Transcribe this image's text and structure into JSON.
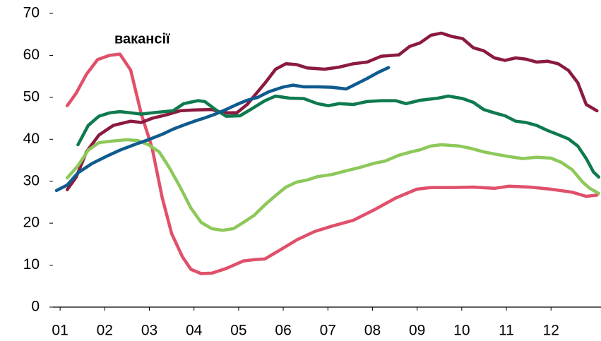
{
  "chart_data": {
    "type": "line",
    "annotation": "вакансії",
    "xlim": [
      0.84,
      13.12
    ],
    "xticks": [
      {
        "value": 1,
        "label": "01"
      },
      {
        "value": 2,
        "label": "02"
      },
      {
        "value": 3,
        "label": "03"
      },
      {
        "value": 4,
        "label": "04"
      },
      {
        "value": 5,
        "label": "05"
      },
      {
        "value": 6,
        "label": "06"
      },
      {
        "value": 7,
        "label": "07"
      },
      {
        "value": 8,
        "label": "08"
      },
      {
        "value": 9,
        "label": "09"
      },
      {
        "value": 10,
        "label": "10"
      },
      {
        "value": 11,
        "label": "11"
      },
      {
        "value": 12,
        "label": "12"
      }
    ],
    "ylim": [
      0,
      70
    ],
    "yticks": [
      0,
      10,
      20,
      30,
      40,
      50,
      60,
      70
    ],
    "series": [
      {
        "color": "#e0506a",
        "x": [
          1.16,
          1.36,
          1.59,
          1.84,
          2.11,
          2.34,
          2.58,
          2.82,
          3.06,
          3.29,
          3.5,
          3.74,
          3.93,
          4.16,
          4.4,
          4.72,
          5.11,
          5.35,
          5.59,
          5.91,
          6.3,
          6.7,
          7.09,
          7.57,
          8.04,
          8.52,
          8.99,
          9.31,
          9.78,
          10.26,
          10.73,
          11.05,
          11.52,
          12.0,
          12.47,
          12.79,
          13.03
        ],
        "values": [
          48,
          51,
          55.5,
          59,
          60,
          60.3,
          56.5,
          46,
          38,
          26,
          17.5,
          12,
          9,
          8,
          8.1,
          9.2,
          11,
          11.3,
          11.5,
          13.5,
          16,
          18,
          19.3,
          20.7,
          23.2,
          26,
          28.1,
          28.5,
          28.5,
          28.6,
          28.3,
          28.8,
          28.6,
          28.1,
          27.4,
          26.4,
          26.7
        ]
      },
      {
        "color": "#8b1a3f",
        "x": [
          1.16,
          1.36,
          1.59,
          1.87,
          2.19,
          2.58,
          2.82,
          3.06,
          3.37,
          3.69,
          4.01,
          4.4,
          4.64,
          4.96,
          5.19,
          5.59,
          5.83,
          6.06,
          6.3,
          6.54,
          6.93,
          7.25,
          7.57,
          7.88,
          8.2,
          8.59,
          8.83,
          9.07,
          9.31,
          9.54,
          9.78,
          10.02,
          10.26,
          10.49,
          10.73,
          10.97,
          11.21,
          11.44,
          11.68,
          11.92,
          12.16,
          12.39,
          12.6,
          12.79,
          13.03
        ],
        "values": [
          28,
          31,
          37,
          41,
          43.3,
          44.3,
          44,
          45,
          45.8,
          46.8,
          47,
          47.1,
          46.3,
          46.3,
          48.3,
          53.4,
          56.7,
          58,
          57.8,
          57,
          56.7,
          57.2,
          58,
          58.4,
          59.8,
          60.1,
          62.1,
          63,
          64.8,
          65.3,
          64.5,
          64,
          61.8,
          61.1,
          59.4,
          58.8,
          59.4,
          59.1,
          58.4,
          58.6,
          58,
          56.4,
          53.5,
          48.3,
          46.8
        ]
      },
      {
        "color": "#0e7a4e",
        "x": [
          1.4,
          1.63,
          1.87,
          2.11,
          2.34,
          2.58,
          2.82,
          3.06,
          3.53,
          3.77,
          4.09,
          4.24,
          4.48,
          4.72,
          5.03,
          5.27,
          5.59,
          5.83,
          6.14,
          6.46,
          6.77,
          7.01,
          7.25,
          7.57,
          7.88,
          8.2,
          8.52,
          8.75,
          9.07,
          9.47,
          9.7,
          10.02,
          10.26,
          10.49,
          10.73,
          10.97,
          11.21,
          11.44,
          11.68,
          11.92,
          12.16,
          12.39,
          12.6,
          12.79,
          12.95,
          13.07
        ],
        "values": [
          38.7,
          43.3,
          45.5,
          46.3,
          46.6,
          46.3,
          46,
          46.3,
          46.8,
          48.5,
          49.2,
          49,
          47.1,
          45.5,
          45.6,
          47.1,
          49.2,
          50.3,
          49.8,
          49.7,
          48.5,
          48,
          48.5,
          48.3,
          49,
          49.2,
          49.2,
          48.5,
          49.3,
          49.8,
          50.3,
          49.7,
          48.8,
          47.1,
          46.3,
          45.6,
          44.3,
          44,
          43.3,
          42.1,
          41.1,
          40.1,
          38.4,
          35.4,
          32.2,
          31
        ]
      },
      {
        "color": "#8dc85a",
        "x": [
          1.16,
          1.4,
          1.63,
          1.87,
          2.19,
          2.5,
          2.74,
          2.98,
          3.22,
          3.45,
          3.69,
          3.93,
          4.16,
          4.4,
          4.64,
          4.88,
          5.11,
          5.35,
          5.59,
          5.83,
          6.06,
          6.3,
          6.54,
          6.77,
          7.09,
          7.41,
          7.72,
          8.04,
          8.28,
          8.59,
          8.83,
          9.07,
          9.31,
          9.54,
          9.94,
          10.18,
          10.49,
          10.73,
          11.05,
          11.36,
          11.68,
          12.0,
          12.23,
          12.47,
          12.71,
          12.87,
          13.07
        ],
        "values": [
          30.8,
          33.7,
          37.4,
          39.2,
          39.6,
          39.9,
          39.7,
          38.7,
          37,
          33.2,
          28.6,
          23.6,
          20.2,
          18.7,
          18.3,
          18.7,
          20.2,
          21.9,
          24.4,
          26.6,
          28.6,
          29.8,
          30.3,
          31.1,
          31.6,
          32.5,
          33.3,
          34.3,
          34.8,
          36.2,
          36.9,
          37.5,
          38.4,
          38.7,
          38.4,
          37.9,
          37,
          36.5,
          35.9,
          35.4,
          35.7,
          35.5,
          34.5,
          32.8,
          29.8,
          28.3,
          27.1
        ]
      },
      {
        "color": "#0f5b8f",
        "x": [
          0.92,
          1.16,
          1.4,
          1.71,
          2.03,
          2.34,
          2.66,
          2.98,
          3.29,
          3.53,
          3.77,
          4.01,
          4.24,
          4.48,
          4.72,
          4.96,
          5.19,
          5.43,
          5.67,
          5.98,
          6.22,
          6.46,
          6.77,
          7.09,
          7.41,
          7.64,
          7.88,
          8.12,
          8.36
        ],
        "values": [
          27.8,
          29.1,
          32,
          34.2,
          35.9,
          37.4,
          38.7,
          39.9,
          41.2,
          42.4,
          43.4,
          44.3,
          45.1,
          46,
          47.1,
          48.3,
          49.3,
          50,
          51.3,
          52.4,
          52.9,
          52.5,
          52.5,
          52.4,
          52,
          53.2,
          54.5,
          55.9,
          57.1
        ]
      }
    ]
  }
}
